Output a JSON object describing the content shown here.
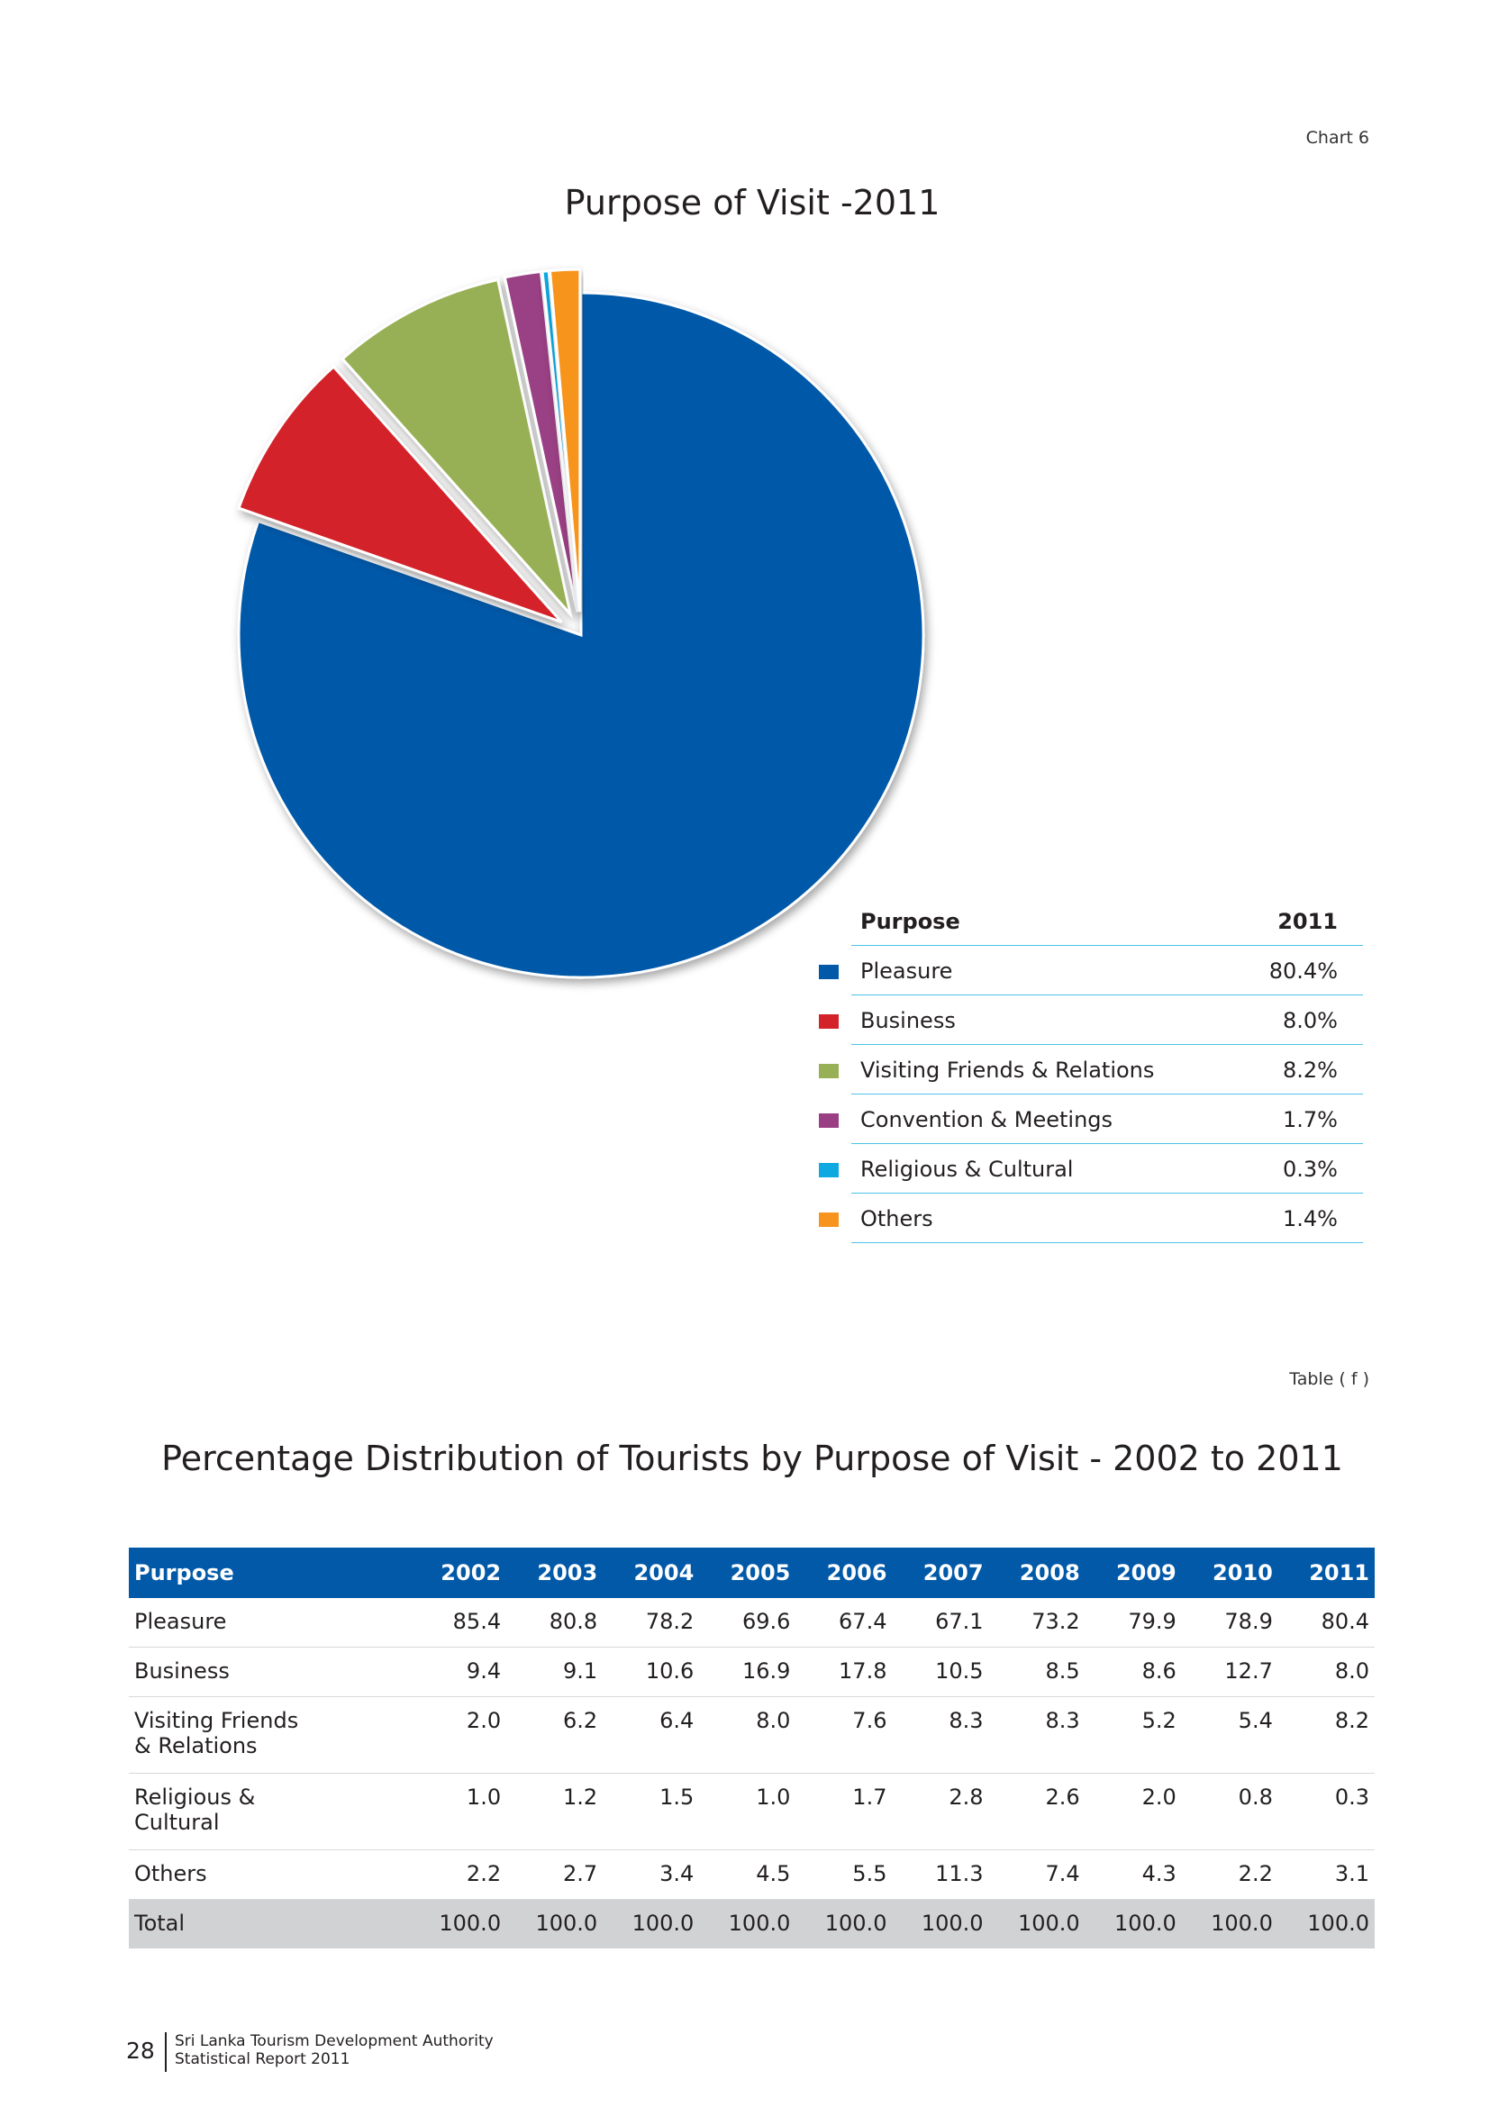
{
  "chart_label": "Chart 6",
  "table_label": "Table ( f )",
  "chart_data": [
    {
      "type": "pie",
      "title": "Purpose  of Visit -2011",
      "legend": {
        "header_name": "Purpose",
        "header_value": "2011"
      },
      "slices": [
        {
          "label": "Pleasure",
          "value": 80.4,
          "display": "80.4%",
          "color": "#0159a8"
        },
        {
          "label": "Business",
          "value": 8.0,
          "display": "8.0%",
          "color": "#d3222a"
        },
        {
          "label": "Visiting Friends & Relations",
          "value": 8.2,
          "display": "8.2%",
          "color": "#97b055"
        },
        {
          "label": "Convention & Meetings",
          "value": 1.7,
          "display": "1.7%",
          "color": "#9a3f84"
        },
        {
          "label": "Religious & Cultural",
          "value": 0.3,
          "display": "0.3%",
          "color": "#0ea9e1"
        },
        {
          "label": "Others",
          "value": 1.4,
          "display": "1.4%",
          "color": "#f7941d"
        }
      ]
    },
    {
      "type": "table",
      "title": "Percentage Distribution of Tourists by Purpose of Visit - 2002 to 2011",
      "columns": [
        "Purpose",
        "2002",
        "2003",
        "2004",
        "2005",
        "2006",
        "2007",
        "2008",
        "2009",
        "2010",
        "2011"
      ],
      "rows": [
        {
          "purpose": [
            "Pleasure"
          ],
          "values": [
            "85.4",
            "80.8",
            "78.2",
            "69.6",
            "67.4",
            "67.1",
            "73.2",
            "79.9",
            "78.9",
            "80.4"
          ]
        },
        {
          "purpose": [
            "Business"
          ],
          "values": [
            "9.4",
            "9.1",
            "10.6",
            "16.9",
            "17.8",
            "10.5",
            "8.5",
            "8.6",
            "12.7",
            "8.0"
          ]
        },
        {
          "purpose": [
            "Visiting Friends",
            "& Relations"
          ],
          "values": [
            "2.0",
            "6.2",
            "6.4",
            "8.0",
            "7.6",
            "8.3",
            "8.3",
            "5.2",
            "5.4",
            "8.2"
          ]
        },
        {
          "purpose": [
            "Religious &",
            "Cultural"
          ],
          "values": [
            "1.0",
            "1.2",
            "1.5",
            "1.0",
            "1.7",
            "2.8",
            "2.6",
            "2.0",
            "0.8",
            "0.3"
          ]
        },
        {
          "purpose": [
            "Others"
          ],
          "values": [
            "2.2",
            "2.7",
            "3.4",
            "4.5",
            "5.5",
            "11.3",
            "7.4",
            "4.3",
            "2.2",
            "3.1"
          ]
        }
      ],
      "total": {
        "purpose": "Total",
        "values": [
          "100.0",
          "100.0",
          "100.0",
          "100.0",
          "100.0",
          "100.0",
          "100.0",
          "100.0",
          "100.0",
          "100.0"
        ]
      }
    }
  ],
  "footer": {
    "page_number": "28",
    "line1": "Sri Lanka Tourism Development Authority",
    "line2": "Statistical Report 2011"
  }
}
